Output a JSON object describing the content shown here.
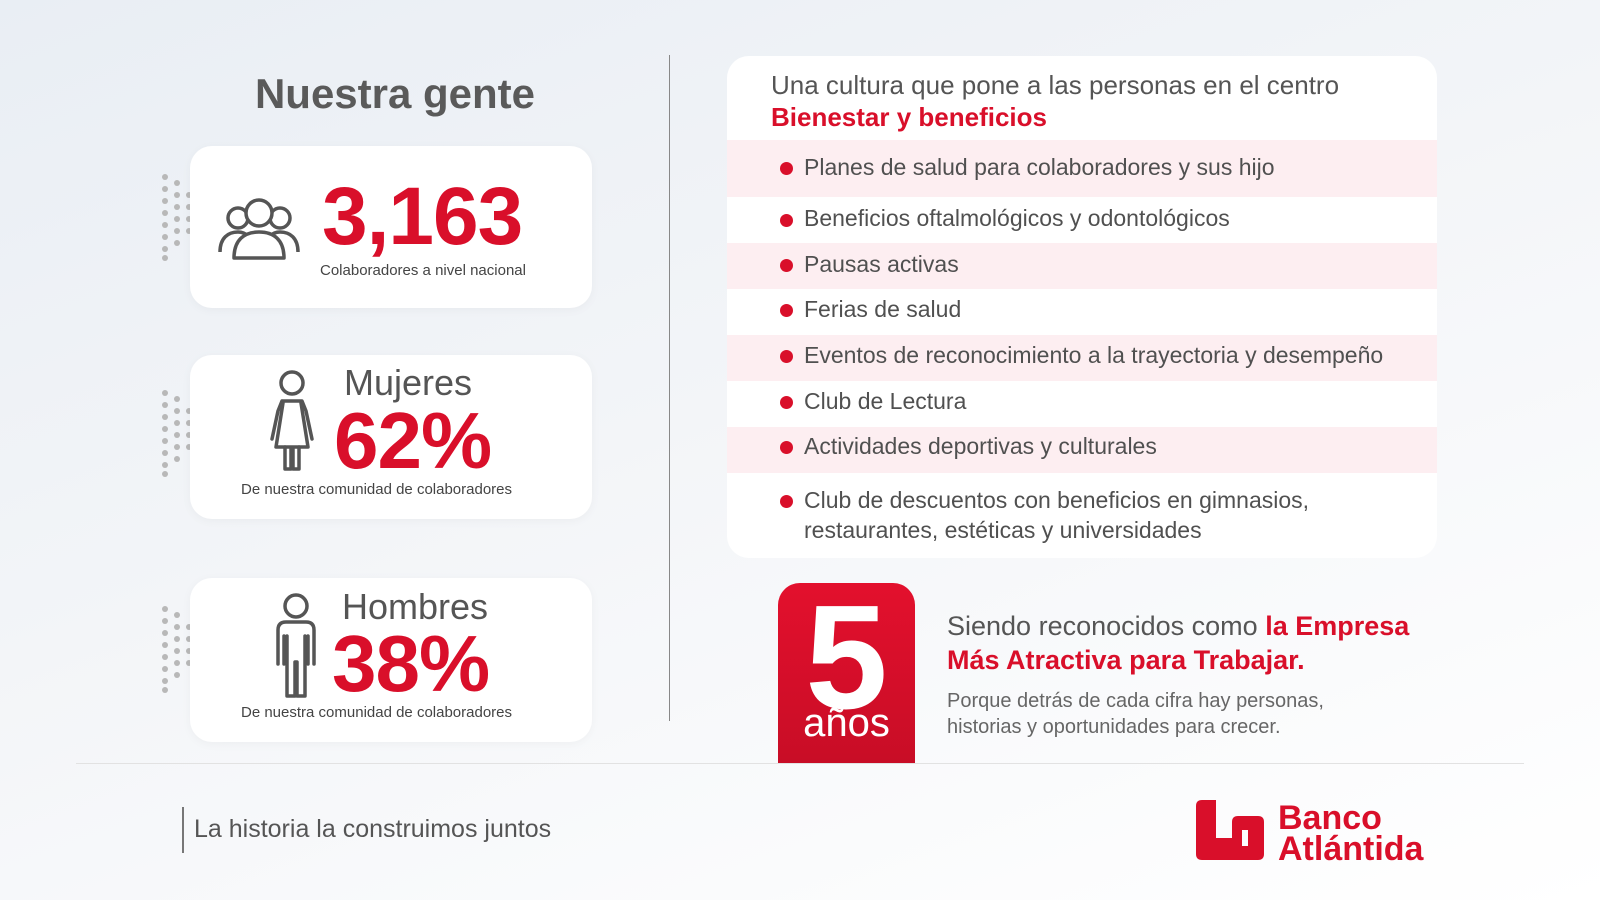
{
  "title": "Nuestra gente",
  "stats": {
    "total": {
      "value": "3,163",
      "caption": "Colaboradores a nivel nacional",
      "icon": "people-group-icon"
    },
    "women": {
      "label": "Mujeres",
      "value": "62%",
      "caption": "De nuestra comunidad de colaboradores",
      "icon": "woman-icon"
    },
    "men": {
      "label": "Hombres",
      "value": "38%",
      "caption": "De nuestra comunidad de colaboradores",
      "icon": "man-icon"
    }
  },
  "benefits": {
    "intro": "Una cultura que pone a las personas en el centro",
    "heading": "Bienestar y beneficios",
    "items": [
      "Planes de salud para colaboradores y sus hijo",
      "Beneficios oftalmológicos y odontológicos",
      "Pausas activas",
      "Ferias de salud",
      "Eventos de reconocimiento a la trayectoria y desempeño",
      "Club de Lectura",
      "Actividades deportivas y culturales",
      "Club de descuentos con beneficios en gimnasios,",
      "restaurantes, estéticas y universidades"
    ]
  },
  "award": {
    "years_number": "5",
    "years_word": "años",
    "line1_plain": "Siendo reconocidos como ",
    "line1_red": "la Empresa",
    "line2_red": "Más Atractiva para Trabajar.",
    "sub1": "Porque detrás de cada cifra hay personas,",
    "sub2": "historias y oportunidades para crecer."
  },
  "footer": {
    "tagline": "La historia la construimos juntos",
    "logo_line1": "Banco",
    "logo_line2": "Atlántida"
  },
  "colors": {
    "brand_red": "#d90f2a",
    "text_gray": "#555555",
    "row_shade": "#fdeef1"
  }
}
